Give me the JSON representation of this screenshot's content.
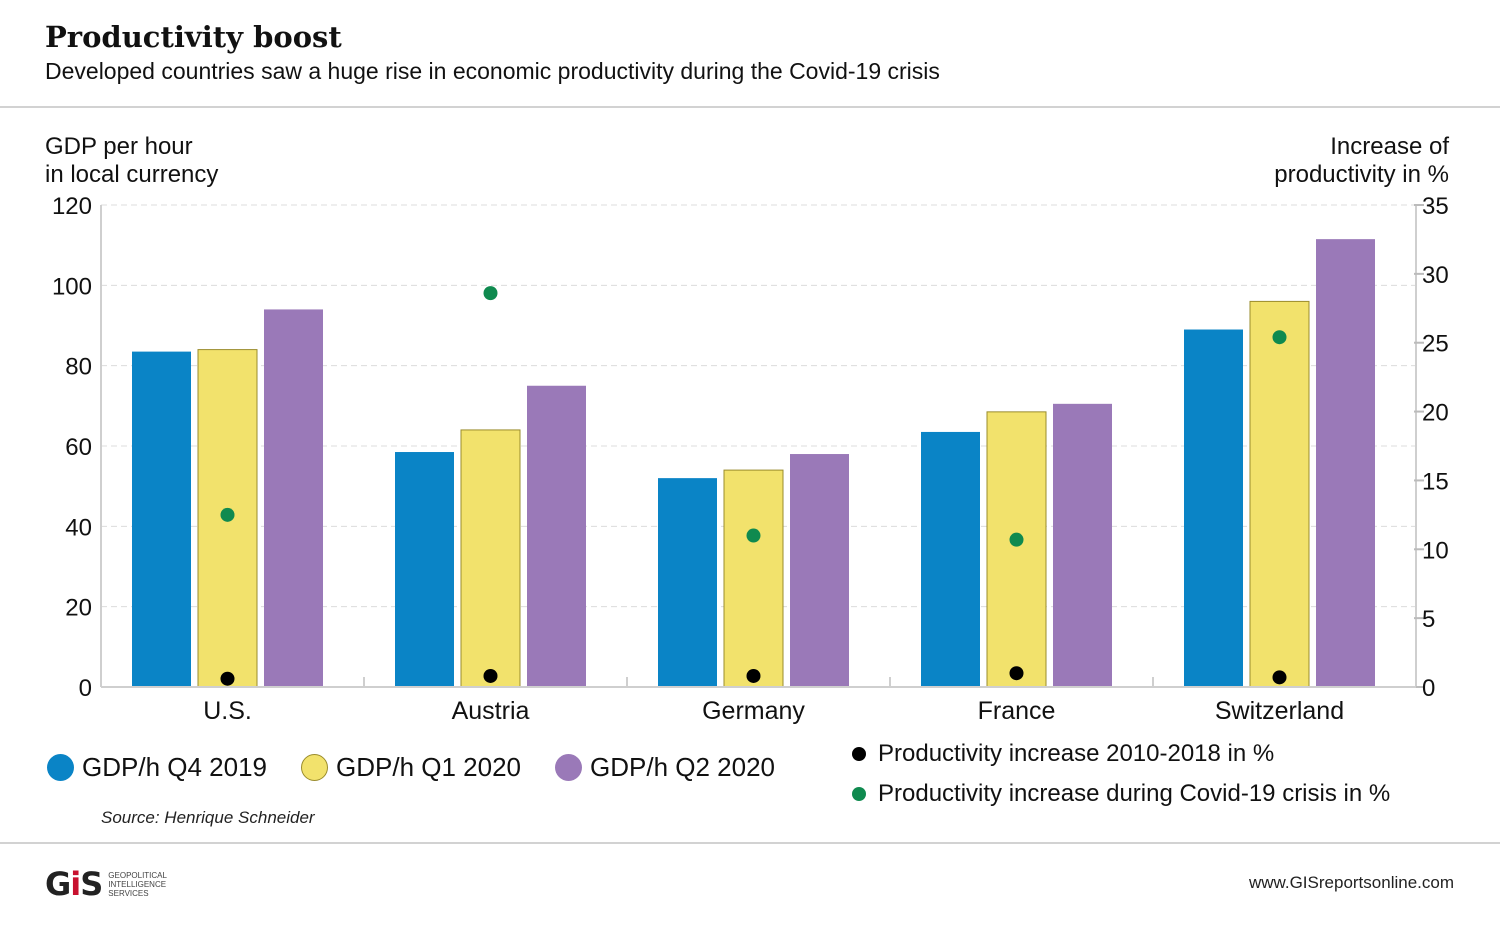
{
  "header": {
    "title": "Productivity boost",
    "subtitle": "Developed countries saw a huge rise in economic productivity during the Covid-19 crisis"
  },
  "chart_data": {
    "type": "bar",
    "categories": [
      "U.S.",
      "Austria",
      "Germany",
      "France",
      "Switzerland"
    ],
    "series": [
      {
        "name": "GDP/h Q4 2019",
        "axis": "left",
        "color": "#0a84c6",
        "values": [
          83.5,
          58.5,
          52,
          63.5,
          89
        ]
      },
      {
        "name": "GDP/h Q1 2020",
        "axis": "left",
        "color": "#f2e26c",
        "values": [
          84,
          64,
          54,
          68.5,
          96
        ]
      },
      {
        "name": "GDP/h Q2 2020",
        "axis": "left",
        "color": "#9a79b8",
        "values": [
          94,
          75,
          58,
          70.5,
          111.5
        ]
      }
    ],
    "dot_series": [
      {
        "name": "Productivity increase 2010-2018 in %",
        "axis": "right",
        "color": "#000000",
        "values": [
          0.6,
          0.8,
          0.8,
          1.0,
          0.7
        ]
      },
      {
        "name": "Productivity increase during Covid-19 crisis in %",
        "axis": "right",
        "color": "#0f8a4f",
        "values": [
          12.5,
          28.6,
          11.0,
          10.7,
          25.4
        ]
      }
    ],
    "left_axis": {
      "label_line1": "GDP per hour",
      "label_line2": "in local currency",
      "ylim": [
        0,
        120
      ],
      "ticks": [
        0,
        20,
        40,
        60,
        80,
        100,
        120
      ]
    },
    "right_axis": {
      "label_line1": "Increase of",
      "label_line2": "productivity in %",
      "ylim": [
        0,
        35
      ],
      "ticks": [
        0,
        5,
        10,
        15,
        20,
        25,
        30,
        35
      ]
    },
    "grid": true,
    "legend_placement": "bottom"
  },
  "legend": {
    "bars": [
      {
        "label": "GDP/h Q4 2019",
        "color": "#0a84c6"
      },
      {
        "label": "GDP/h Q1 2020",
        "color": "#f2e26c"
      },
      {
        "label": "GDP/h Q2 2020",
        "color": "#9a79b8"
      }
    ],
    "dots": [
      {
        "label": "Productivity increase 2010-2018 in %",
        "color": "#000000"
      },
      {
        "label": "Productivity increase during Covid-19 crisis in %",
        "color": "#0f8a4f"
      }
    ]
  },
  "source": "Source: Henrique Schneider",
  "footer": {
    "logo_mark": "GIS",
    "logo_text_1": "GEOPOLITICAL",
    "logo_text_2": "INTELLIGENCE",
    "logo_text_3": "SERVICES",
    "url": "www.GISreportsonline.com"
  }
}
